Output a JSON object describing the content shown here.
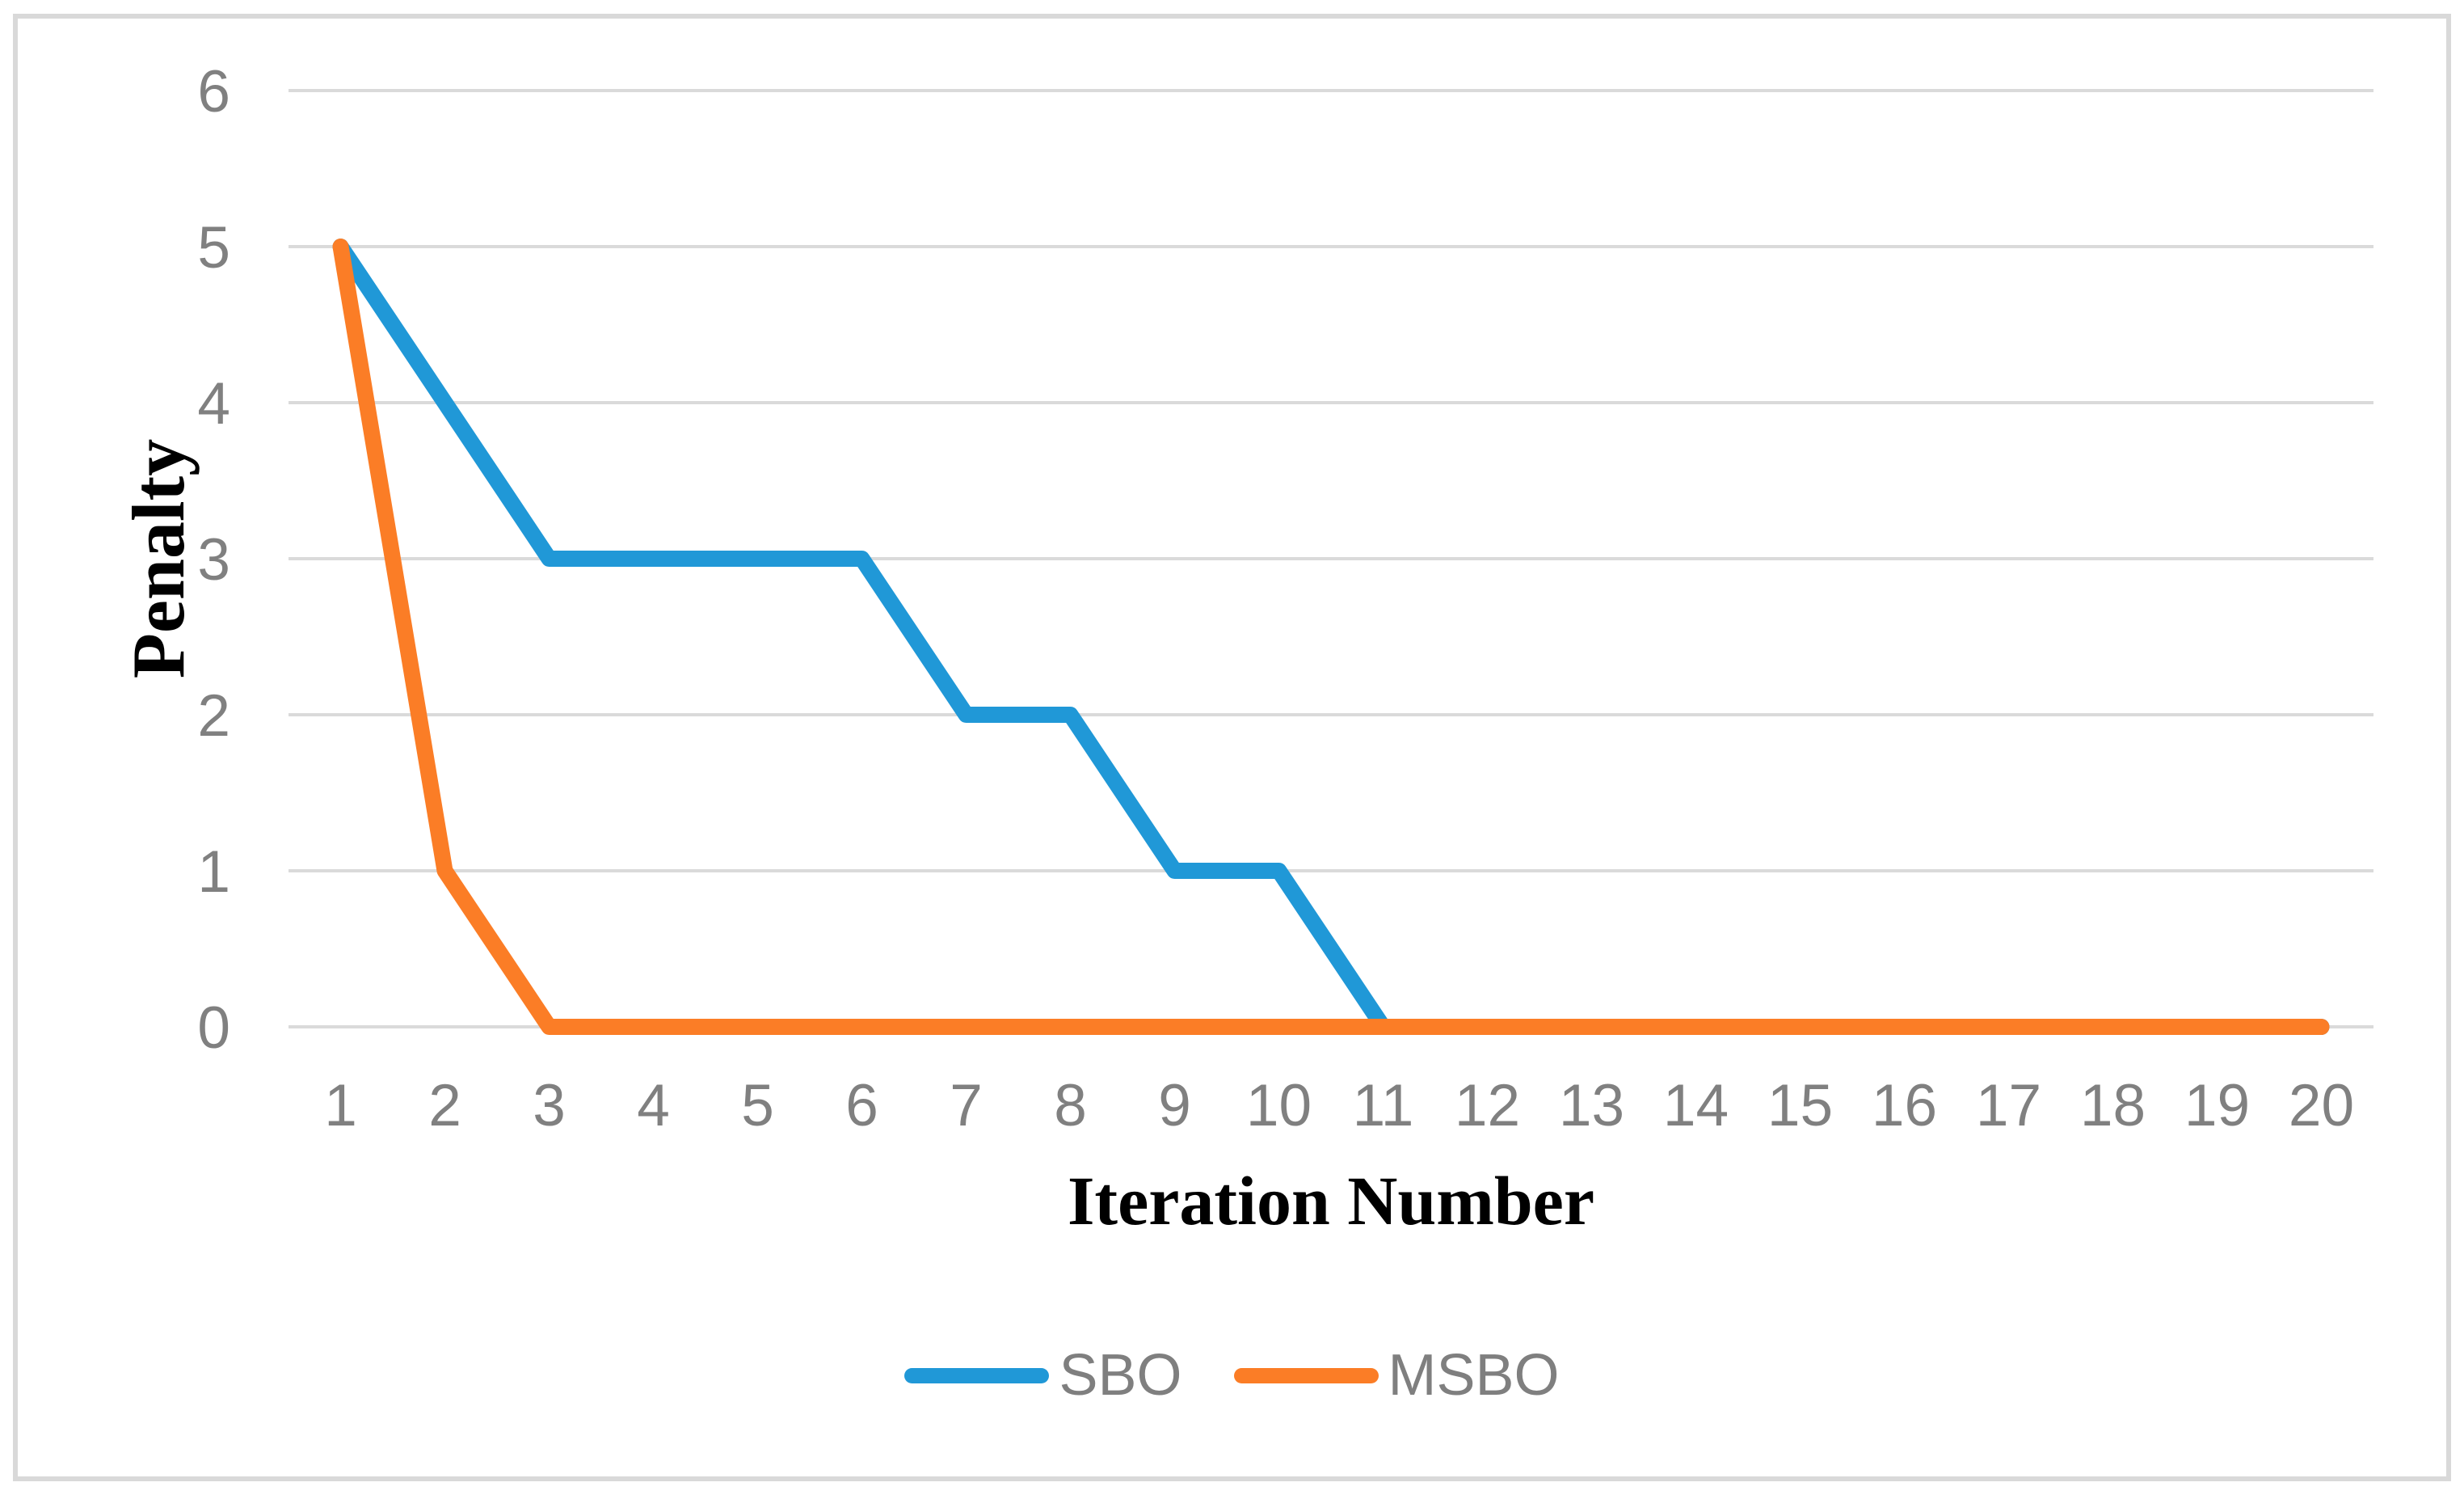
{
  "figure": {
    "background": "#FFFFFF",
    "frame_border_color": "#D9D9D9"
  },
  "chart_data": {
    "type": "line",
    "title": "",
    "xlabel": "Iteration Number",
    "ylabel": "Penalty",
    "x": [
      1,
      2,
      3,
      4,
      5,
      6,
      7,
      8,
      9,
      10,
      11,
      12,
      13,
      14,
      15,
      16,
      17,
      18,
      19,
      20
    ],
    "series": [
      {
        "name": "SBO",
        "color": "#2098D7",
        "values": [
          5,
          4,
          3,
          3,
          3,
          3,
          2,
          2,
          1,
          1,
          0,
          0,
          0,
          0,
          0,
          0,
          0,
          0,
          0,
          0
        ]
      },
      {
        "name": "MSBO",
        "color": "#FB7D26",
        "values": [
          5,
          1,
          0,
          0,
          0,
          0,
          0,
          0,
          0,
          0,
          0,
          0,
          0,
          0,
          0,
          0,
          0,
          0,
          0,
          0
        ]
      }
    ],
    "ylim": [
      0,
      6
    ],
    "yticks": [
      0,
      1,
      2,
      3,
      4,
      5,
      6
    ],
    "grid": "horizontal",
    "gridline_color": "#DADADA",
    "tick_label_color": "#808080",
    "axis_title_color": "#000000",
    "legend_position": "bottom-center",
    "legend_text_color": "#7F7F7F",
    "line_width": 20
  }
}
